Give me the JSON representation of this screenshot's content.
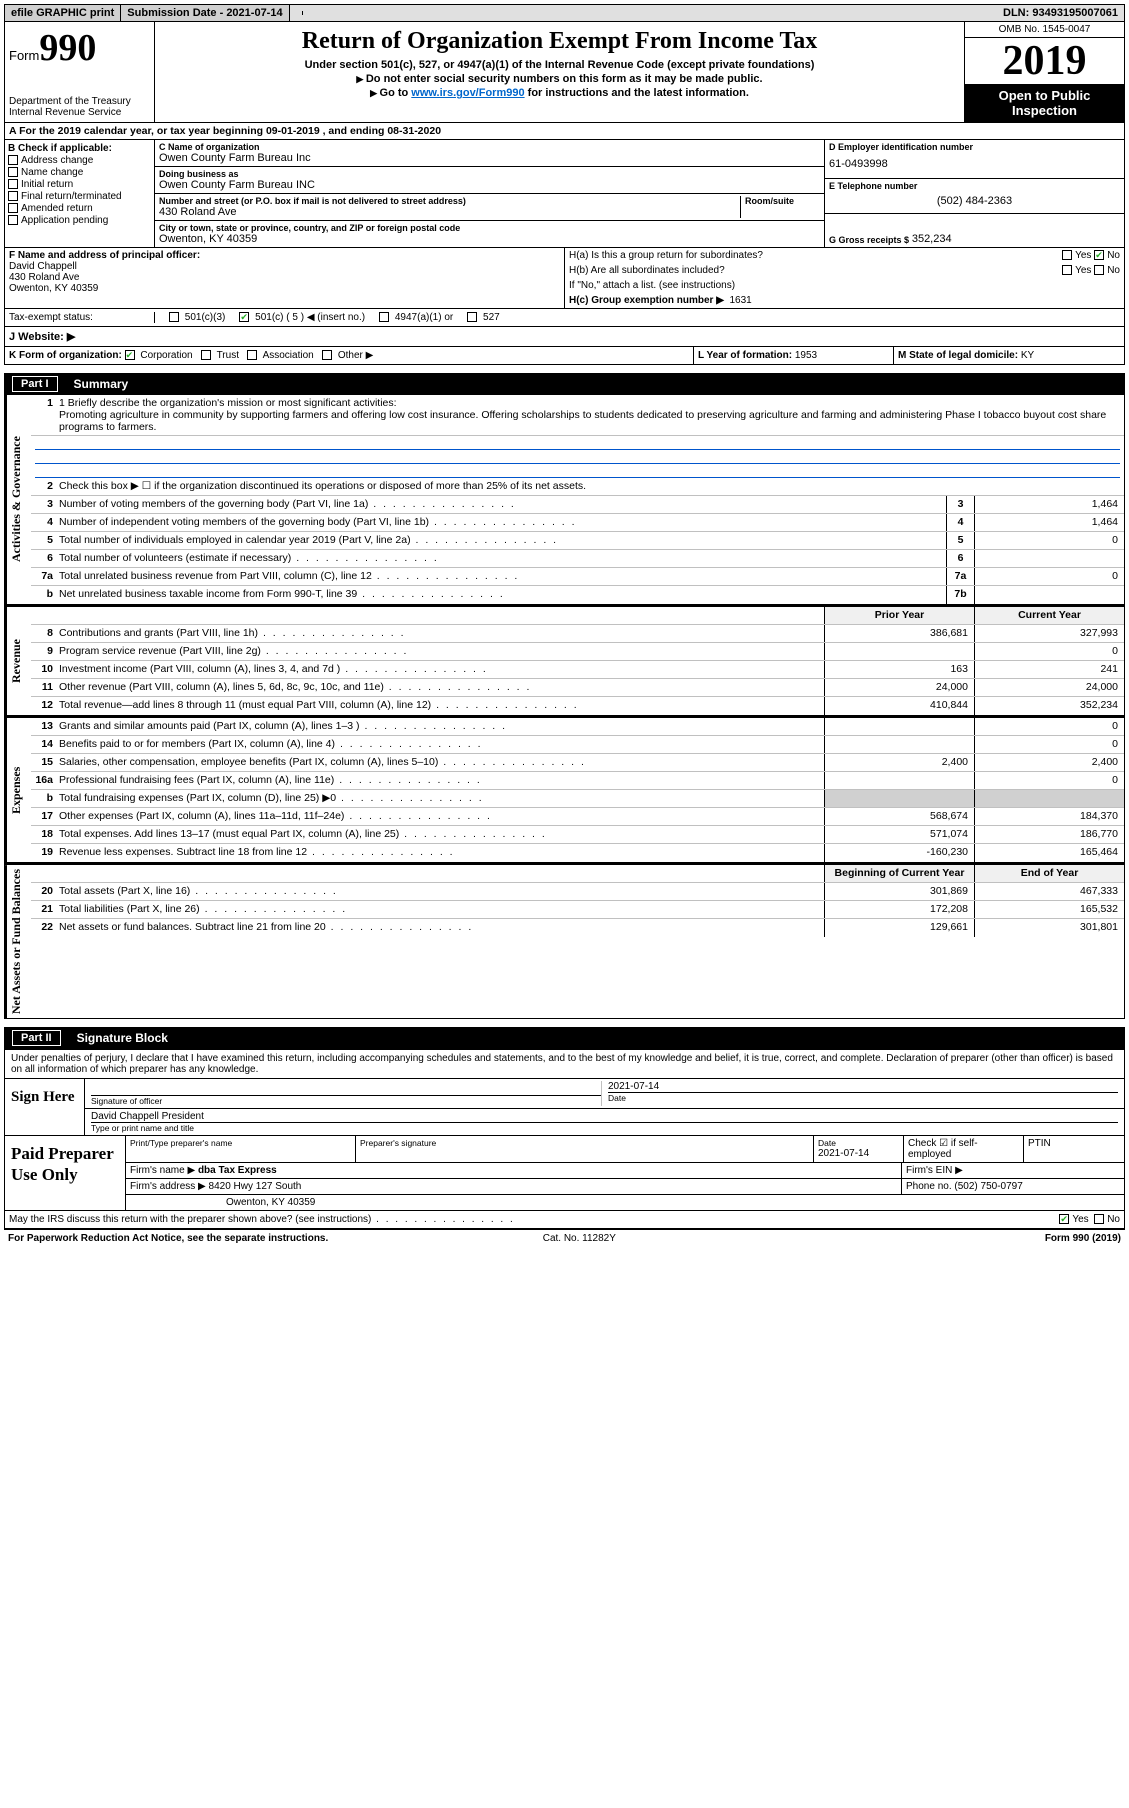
{
  "topbar": {
    "efile": "efile GRAPHIC print",
    "submission_label": "Submission Date - 2021-07-14",
    "dln": "DLN: 93493195007061"
  },
  "header": {
    "form_word": "Form",
    "form_num": "990",
    "dept": "Department of the Treasury",
    "irs": "Internal Revenue Service",
    "title": "Return of Organization Exempt From Income Tax",
    "sub1": "Under section 501(c), 527, or 4947(a)(1) of the Internal Revenue Code (except private foundations)",
    "sub2": "Do not enter social security numbers on this form as it may be made public.",
    "sub3_pre": "Go to ",
    "sub3_link": "www.irs.gov/Form990",
    "sub3_post": " for instructions and the latest information.",
    "omb": "OMB No. 1545-0047",
    "year": "2019",
    "inspect1": "Open to Public",
    "inspect2": "Inspection"
  },
  "rowA": "A For the 2019 calendar year, or tax year beginning 09-01-2019   , and ending 08-31-2020",
  "boxB": {
    "title": "B Check if applicable:",
    "items": [
      "Address change",
      "Name change",
      "Initial return",
      "Final return/terminated",
      "Amended return",
      "Application pending"
    ]
  },
  "boxC": {
    "name_lbl": "C Name of organization",
    "name": "Owen County Farm Bureau Inc",
    "dba_lbl": "Doing business as",
    "dba": "Owen County Farm Bureau INC",
    "addr_lbl": "Number and street (or P.O. box if mail is not delivered to street address)",
    "room_lbl": "Room/suite",
    "addr": "430 Roland Ave",
    "city_lbl": "City or town, state or province, country, and ZIP or foreign postal code",
    "city": "Owenton, KY  40359"
  },
  "boxD": {
    "lbl": "D Employer identification number",
    "val": "61-0493998"
  },
  "boxE": {
    "lbl": "E Telephone number",
    "val": "(502) 484-2363"
  },
  "boxG": {
    "lbl": "G Gross receipts $",
    "val": "352,234"
  },
  "boxF": {
    "lbl": "F  Name and address of principal officer:",
    "name": "David Chappell",
    "addr1": "430 Roland Ave",
    "addr2": "Owenton, KY  40359"
  },
  "boxH": {
    "a": "H(a)  Is this a group return for subordinates?",
    "b": "H(b)  Are all subordinates included?",
    "b_note": "If \"No,\" attach a list. (see instructions)",
    "c_lbl": "H(c)  Group exemption number ▶",
    "c_val": "1631",
    "yes": "Yes",
    "no": "No"
  },
  "taxStatus": {
    "lbl": "Tax-exempt status:",
    "o1": "501(c)(3)",
    "o2": "501(c) ( 5 ) ◀ (insert no.)",
    "o3": "4947(a)(1) or",
    "o4": "527"
  },
  "website": {
    "lbl": "J  Website: ▶"
  },
  "klm": {
    "k": "K Form of organization:",
    "k_opts": [
      "Corporation",
      "Trust",
      "Association",
      "Other ▶"
    ],
    "l_lbl": "L Year of formation:",
    "l_val": "1953",
    "m_lbl": "M State of legal domicile:",
    "m_val": "KY"
  },
  "part1": {
    "tab": "Part I",
    "title": "Summary"
  },
  "summary": {
    "line1_lbl": "1  Briefly describe the organization's mission or most significant activities:",
    "line1_txt": "Promoting agriculture in community by supporting farmers and offering low cost insurance. Offering scholarships to students dedicated to preserving agriculture and farming and administering Phase I tobacco buyout cost share programs to farmers.",
    "line2": "Check this box ▶ ☐  if the organization discontinued its operations or disposed of more than 25% of its net assets.",
    "rows_ag": [
      {
        "n": "3",
        "t": "Number of voting members of the governing body (Part VI, line 1a)",
        "b": "3",
        "v": "1,464"
      },
      {
        "n": "4",
        "t": "Number of independent voting members of the governing body (Part VI, line 1b)",
        "b": "4",
        "v": "1,464"
      },
      {
        "n": "5",
        "t": "Total number of individuals employed in calendar year 2019 (Part V, line 2a)",
        "b": "5",
        "v": "0"
      },
      {
        "n": "6",
        "t": "Total number of volunteers (estimate if necessary)",
        "b": "6",
        "v": ""
      },
      {
        "n": "7a",
        "t": "Total unrelated business revenue from Part VIII, column (C), line 12",
        "b": "7a",
        "v": "0"
      },
      {
        "n": "b",
        "t": "Net unrelated business taxable income from Form 990-T, line 39",
        "b": "7b",
        "v": ""
      }
    ],
    "hdr_prior": "Prior Year",
    "hdr_curr": "Current Year",
    "rows_rev": [
      {
        "n": "8",
        "t": "Contributions and grants (Part VIII, line 1h)",
        "p": "386,681",
        "c": "327,993"
      },
      {
        "n": "9",
        "t": "Program service revenue (Part VIII, line 2g)",
        "p": "",
        "c": "0"
      },
      {
        "n": "10",
        "t": "Investment income (Part VIII, column (A), lines 3, 4, and 7d )",
        "p": "163",
        "c": "241"
      },
      {
        "n": "11",
        "t": "Other revenue (Part VIII, column (A), lines 5, 6d, 8c, 9c, 10c, and 11e)",
        "p": "24,000",
        "c": "24,000"
      },
      {
        "n": "12",
        "t": "Total revenue—add lines 8 through 11 (must equal Part VIII, column (A), line 12)",
        "p": "410,844",
        "c": "352,234"
      }
    ],
    "rows_exp": [
      {
        "n": "13",
        "t": "Grants and similar amounts paid (Part IX, column (A), lines 1–3 )",
        "p": "",
        "c": "0"
      },
      {
        "n": "14",
        "t": "Benefits paid to or for members (Part IX, column (A), line 4)",
        "p": "",
        "c": "0"
      },
      {
        "n": "15",
        "t": "Salaries, other compensation, employee benefits (Part IX, column (A), lines 5–10)",
        "p": "2,400",
        "c": "2,400"
      },
      {
        "n": "16a",
        "t": "Professional fundraising fees (Part IX, column (A), line 11e)",
        "p": "",
        "c": "0"
      },
      {
        "n": "b",
        "t": "Total fundraising expenses (Part IX, column (D), line 25) ▶0",
        "p": "shade",
        "c": "shade"
      },
      {
        "n": "17",
        "t": "Other expenses (Part IX, column (A), lines 11a–11d, 11f–24e)",
        "p": "568,674",
        "c": "184,370"
      },
      {
        "n": "18",
        "t": "Total expenses. Add lines 13–17 (must equal Part IX, column (A), line 25)",
        "p": "571,074",
        "c": "186,770"
      },
      {
        "n": "19",
        "t": "Revenue less expenses. Subtract line 18 from line 12",
        "p": "-160,230",
        "c": "165,464"
      }
    ],
    "hdr_begin": "Beginning of Current Year",
    "hdr_end": "End of Year",
    "rows_na": [
      {
        "n": "20",
        "t": "Total assets (Part X, line 16)",
        "p": "301,869",
        "c": "467,333"
      },
      {
        "n": "21",
        "t": "Total liabilities (Part X, line 26)",
        "p": "172,208",
        "c": "165,532"
      },
      {
        "n": "22",
        "t": "Net assets or fund balances. Subtract line 21 from line 20",
        "p": "129,661",
        "c": "301,801"
      }
    ],
    "vlabels": {
      "ag": "Activities & Governance",
      "rev": "Revenue",
      "exp": "Expenses",
      "na": "Net Assets or Fund Balances"
    }
  },
  "part2": {
    "tab": "Part II",
    "title": "Signature Block"
  },
  "sig": {
    "intro": "Under penalties of perjury, I declare that I have examined this return, including accompanying schedules and statements, and to the best of my knowledge and belief, it is true, correct, and complete. Declaration of preparer (other than officer) is based on all information of which preparer has any knowledge.",
    "sign_here": "Sign Here",
    "sig_officer": "Signature of officer",
    "date_lbl": "Date",
    "date_val": "2021-07-14",
    "name_line": "David Chappell  President",
    "name_lbl": "Type or print name and title",
    "paid": "Paid Preparer Use Only",
    "p_name_lbl": "Print/Type preparer's name",
    "p_sig_lbl": "Preparer's signature",
    "p_date_lbl": "Date",
    "p_date": "2021-07-14",
    "p_check": "Check ☑ if self-employed",
    "ptin": "PTIN",
    "firm_name_lbl": "Firm's name    ▶",
    "firm_name": "dba Tax Express",
    "firm_ein_lbl": "Firm's EIN ▶",
    "firm_addr_lbl": "Firm's address ▶",
    "firm_addr1": "8420 Hwy 127 South",
    "firm_addr2": "Owenton, KY  40359",
    "phone_lbl": "Phone no.",
    "phone": "(502) 750-0797",
    "discuss": "May the IRS discuss this return with the preparer shown above? (see instructions)",
    "yes": "Yes",
    "no": "No"
  },
  "footer": {
    "left": "For Paperwork Reduction Act Notice, see the separate instructions.",
    "mid": "Cat. No. 11282Y",
    "right": "Form 990 (2019)"
  }
}
